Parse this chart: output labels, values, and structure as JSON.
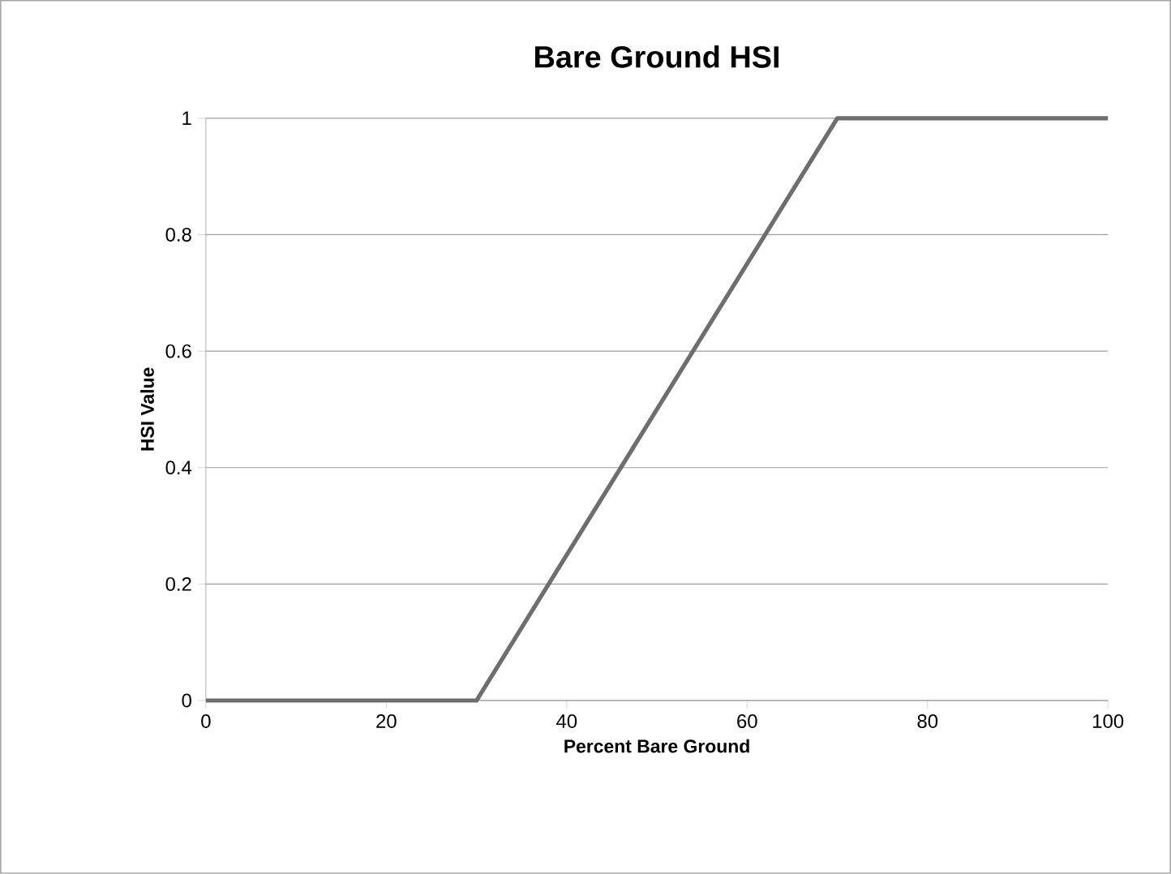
{
  "chart_data": {
    "type": "line",
    "title": "Bare Ground HSI",
    "xlabel": "Percent Bare Ground",
    "ylabel": "HSI Value",
    "series": [
      {
        "x": [
          0,
          30,
          70,
          100
        ],
        "values": [
          0,
          0,
          1,
          1
        ],
        "color": "#6e6e6e"
      }
    ],
    "xlim": [
      0,
      100
    ],
    "ylim": [
      0,
      1
    ],
    "xticks": [
      0,
      20,
      40,
      60,
      80,
      100
    ],
    "yticks": [
      0,
      0.2,
      0.4,
      0.6,
      0.8,
      1
    ],
    "grid": "y",
    "marker": "none",
    "line_style": "solid"
  }
}
